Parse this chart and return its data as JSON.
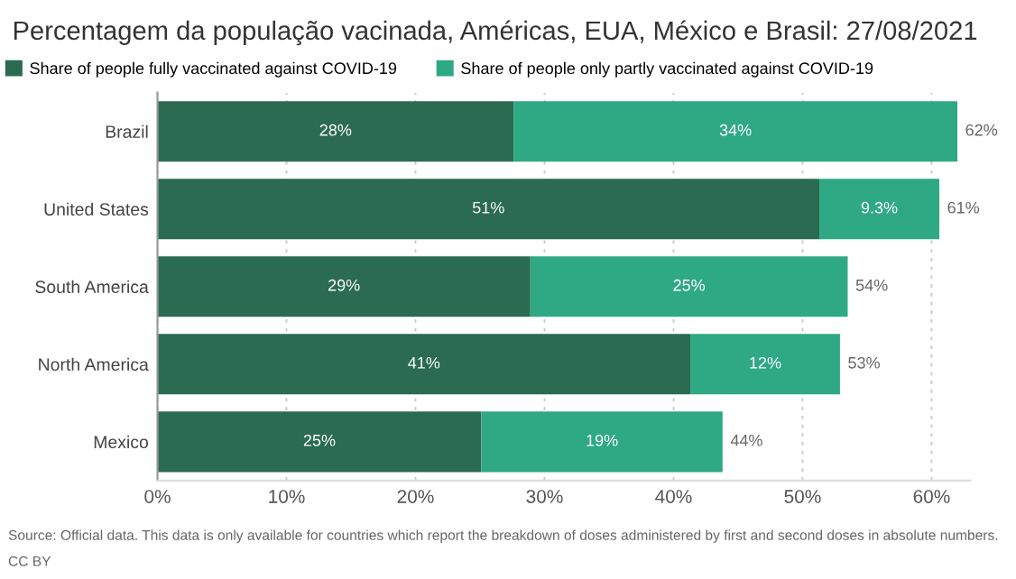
{
  "chart_data": {
    "type": "bar",
    "orientation": "horizontal",
    "stacked": true,
    "title": "Percentagem da população vacinada, Américas, EUA, México e Brasil: 27/08/2021",
    "categories": [
      "Brazil",
      "United States",
      "South America",
      "North America",
      "Mexico"
    ],
    "series": [
      {
        "name": "Share of people fully vaccinated against COVID-19",
        "color": "#2a6b51",
        "values": [
          27.6,
          51.3,
          28.9,
          41.3,
          25.1
        ],
        "value_labels": [
          "28%",
          "51%",
          "29%",
          "41%",
          "25%"
        ]
      },
      {
        "name": "Share of people only partly vaccinated against COVID-19",
        "color": "#2fa884",
        "values": [
          34.4,
          9.3,
          24.6,
          11.6,
          18.7
        ],
        "value_labels": [
          "34%",
          "9.3%",
          "25%",
          "12%",
          "19%"
        ]
      }
    ],
    "totals": [
      "62%",
      "61%",
      "54%",
      "53%",
      "44%"
    ],
    "xlim": [
      0,
      63
    ],
    "xticks": [
      {
        "value": 0,
        "label": "0%"
      },
      {
        "value": 10,
        "label": "10%"
      },
      {
        "value": 20,
        "label": "20%"
      },
      {
        "value": 30,
        "label": "30%"
      },
      {
        "value": 40,
        "label": "40%"
      },
      {
        "value": 50,
        "label": "50%"
      },
      {
        "value": 60,
        "label": "60%"
      }
    ],
    "grid": "x",
    "legend": "top left",
    "annotations": [
      "Source: Official data. This data is only available for countries which report the breakdown of doses administered by first and second doses in absolute numbers.",
      "CC BY"
    ]
  }
}
